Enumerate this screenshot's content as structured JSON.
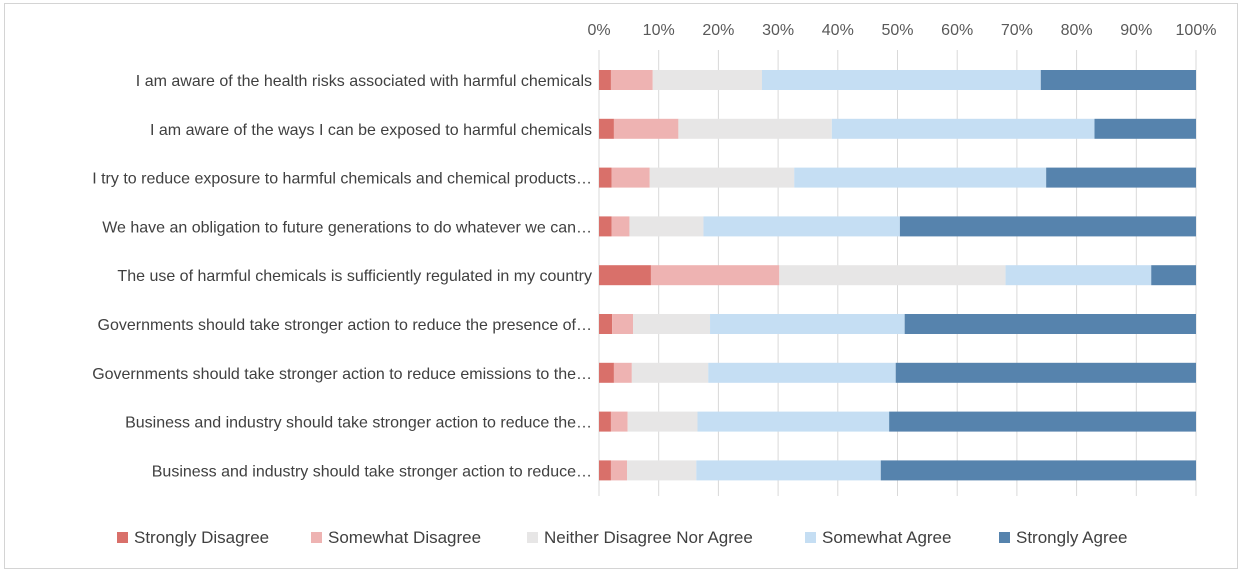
{
  "chart_data": {
    "type": "bar",
    "orientation": "horizontal",
    "stacked": "percent",
    "title": "",
    "xlabel": "",
    "ylabel": "",
    "xlim": [
      0,
      100
    ],
    "x_ticks": [
      "0%",
      "10%",
      "20%",
      "30%",
      "40%",
      "50%",
      "60%",
      "70%",
      "80%",
      "90%",
      "100%"
    ],
    "x_axis_position": "top",
    "grid": true,
    "legend_position": "bottom",
    "categories": [
      "I am aware of the health risks associated with harmful chemicals",
      "I am aware of the ways I can be exposed to harmful chemicals",
      "I try to reduce exposure to harmful chemicals and chemical products…",
      "We have an obligation to future generations to do whatever we can…",
      "The use of harmful chemicals is sufficiently regulated in my country",
      "Governments should take stronger action to reduce the presence of…",
      "Governments should take stronger action to reduce emissions to the…",
      "Business and industry should take stronger action to reduce the…",
      "Business and industry should take stronger action to reduce…"
    ],
    "series": [
      {
        "name": "Strongly Disagree",
        "color": "#d9706a",
        "values": [
          2.0,
          2.5,
          2.1,
          2.1,
          8.7,
          2.2,
          2.5,
          2.0,
          2.0
        ]
      },
      {
        "name": "Somewhat Disagree",
        "color": "#eeb3b2",
        "values": [
          7.0,
          10.8,
          6.4,
          3.0,
          21.5,
          3.5,
          3.0,
          2.8,
          2.7
        ]
      },
      {
        "name": "Neither Disagree Nor Agree",
        "color": "#e7e6e6",
        "values": [
          18.3,
          25.7,
          24.2,
          12.4,
          37.9,
          12.9,
          12.8,
          11.7,
          11.6
        ]
      },
      {
        "name": "Somewhat Agree",
        "color": "#c5def3",
        "values": [
          46.7,
          44.0,
          42.2,
          32.9,
          24.4,
          32.6,
          31.4,
          32.1,
          30.9
        ]
      },
      {
        "name": "Strongly Agree",
        "color": "#5683ad",
        "values": [
          26.0,
          17.0,
          25.1,
          49.6,
          7.5,
          48.8,
          50.3,
          51.4,
          52.8
        ]
      }
    ]
  }
}
